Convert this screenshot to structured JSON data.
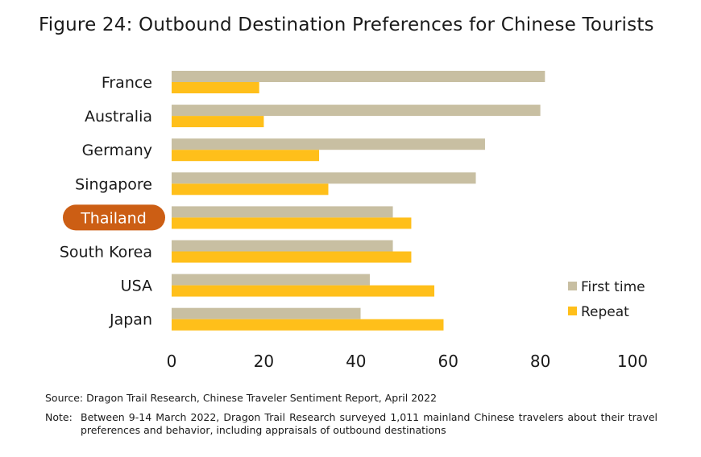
{
  "title": "Figure 24: Outbound Destination Preferences for Chinese Tourists",
  "colors": {
    "first_time": "#c8bfa2",
    "repeat": "#ffbf1a",
    "highlight_pill": "#cc5e14",
    "pill_text": "#ffffff"
  },
  "legend": {
    "first_time": "First time",
    "repeat": "Repeat",
    "placement": "right-middle"
  },
  "highlight": "Thailand",
  "chart_data": {
    "type": "bar",
    "orientation": "horizontal",
    "categories": [
      "France",
      "Australia",
      "Germany",
      "Singapore",
      "Thailand",
      "South Korea",
      "USA",
      "Japan"
    ],
    "series": [
      {
        "name": "First time",
        "values": [
          81,
          80,
          68,
          66,
          48,
          48,
          43,
          41
        ]
      },
      {
        "name": "Repeat",
        "values": [
          19,
          20,
          32,
          34,
          52,
          52,
          57,
          59
        ]
      }
    ],
    "xticks": [
      "0",
      "20",
      "40",
      "60",
      "80",
      "100"
    ],
    "xlim": [
      0,
      100
    ],
    "grid": false
  },
  "source": "Source: Dragon Trail Research, Chinese Traveler Sentiment Report, April 2022",
  "note_label": "Note:",
  "note_text": "Between 9-14 March 2022, Dragon Trail Research surveyed 1,011 mainland Chinese travelers about their travel preferences and behavior, including appraisals of outbound destinations"
}
